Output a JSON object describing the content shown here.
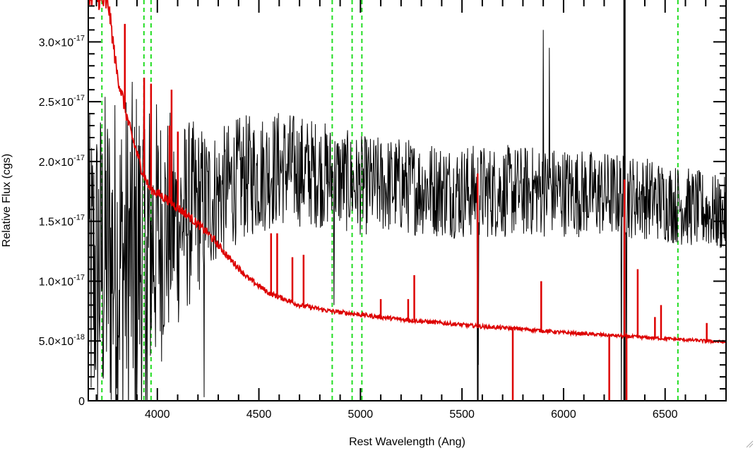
{
  "chart_data": {
    "type": "line",
    "title": "",
    "xlabel": "Rest Wavelength (Ang)",
    "ylabel": "Relative Flux (cgs)",
    "xlim": [
      3660,
      6800
    ],
    "ylim": [
      0,
      3.35e-17
    ],
    "x_ticks": [
      {
        "value": 4000,
        "label": "4000"
      },
      {
        "value": 4500,
        "label": "4500"
      },
      {
        "value": 5000,
        "label": "5000"
      },
      {
        "value": 5500,
        "label": "5500"
      },
      {
        "value": 6000,
        "label": "6000"
      },
      {
        "value": 6500,
        "label": "6500"
      }
    ],
    "y_ticks": [
      {
        "value": 0,
        "mantissa": "0",
        "exponent": ""
      },
      {
        "value": 5e-18,
        "mantissa": "5.0×10",
        "exponent": "-18"
      },
      {
        "value": 1e-17,
        "mantissa": "1.0×10",
        "exponent": "-17"
      },
      {
        "value": 1.5e-17,
        "mantissa": "1.5×10",
        "exponent": "-17"
      },
      {
        "value": 2e-17,
        "mantissa": "2.0×10",
        "exponent": "-17"
      },
      {
        "value": 2.5e-17,
        "mantissa": "2.5×10",
        "exponent": "-17"
      },
      {
        "value": 3e-17,
        "mantissa": "3.0×10",
        "exponent": "-17"
      }
    ],
    "grid": false,
    "line_markers_x": [
      3727,
      3934,
      3969,
      4861,
      4959,
      5007,
      6563
    ],
    "series": [
      {
        "color": "#000000",
        "style": "noisy spectrum",
        "mean": [
          [
            3660,
            1e-17
          ],
          [
            3750,
            1.2e-17
          ],
          [
            3850,
            1.15e-17
          ],
          [
            3950,
            1.3e-17
          ],
          [
            4050,
            1.45e-17
          ],
          [
            4200,
            1.6e-17
          ],
          [
            4400,
            1.85e-17
          ],
          [
            4600,
            1.95e-17
          ],
          [
            4800,
            1.9e-17
          ],
          [
            5000,
            1.8e-17
          ],
          [
            5200,
            1.8e-17
          ],
          [
            5500,
            1.75e-17
          ],
          [
            6000,
            1.75e-17
          ],
          [
            6400,
            1.7e-17
          ],
          [
            6800,
            1.55e-17
          ]
        ],
        "noise": [
          [
            3660,
            1.4e-17
          ],
          [
            3900,
            1.5e-17
          ],
          [
            4050,
            1e-17
          ],
          [
            4300,
            5.5e-18
          ],
          [
            5000,
            4.2e-18
          ],
          [
            6000,
            3.8e-18
          ],
          [
            6800,
            3.2e-18
          ]
        ],
        "spikes": [
          [
            4870,
            8e-18
          ],
          [
            5575,
            -1e-18
          ],
          [
            5580,
            3e-18
          ],
          [
            6285,
            -1e-18
          ],
          [
            6300,
            3.35e-17
          ],
          [
            6310,
            -1e-18
          ],
          [
            5930,
            2.95e-17
          ],
          [
            5900,
            3.1e-17
          ],
          [
            3890,
            -1e-18
          ],
          [
            3950,
            -1e-18
          ],
          [
            4230,
            3e-19
          ]
        ]
      },
      {
        "color": "#dd0000",
        "style": "model continuum with emission lines",
        "continuum": [
          [
            3660,
            3.4e-17
          ],
          [
            3760,
            3.3e-17
          ],
          [
            3800,
            2.75e-17
          ],
          [
            3860,
            2.3e-17
          ],
          [
            3920,
            1.95e-17
          ],
          [
            3960,
            1.78e-17
          ],
          [
            4050,
            1.68e-17
          ],
          [
            4150,
            1.55e-17
          ],
          [
            4250,
            1.4e-17
          ],
          [
            4350,
            1.2e-17
          ],
          [
            4450,
            1.02e-17
          ],
          [
            4550,
            9e-18
          ],
          [
            4700,
            8e-18
          ],
          [
            4850,
            7.5e-18
          ],
          [
            5000,
            7.2e-18
          ],
          [
            5200,
            6.8e-18
          ],
          [
            5400,
            6.5e-18
          ],
          [
            5600,
            6.2e-18
          ],
          [
            5800,
            6e-18
          ],
          [
            6000,
            5.7e-18
          ],
          [
            6200,
            5.5e-18
          ],
          [
            6400,
            5.3e-18
          ],
          [
            6600,
            5.1e-18
          ],
          [
            6800,
            4.9e-18
          ]
        ],
        "emission_lines": [
          [
            3840,
            3.15e-17
          ],
          [
            3935,
            2.7e-17
          ],
          [
            3969,
            2.65e-17
          ],
          [
            4060,
            2.3e-17
          ],
          [
            4070,
            2.6e-17
          ],
          [
            4101,
            2.25e-17
          ],
          [
            4560,
            1.4e-17
          ],
          [
            4590,
            1.4e-17
          ],
          [
            4665,
            1.2e-17
          ],
          [
            4720,
            1.22e-17
          ],
          [
            5100,
            8.5e-18
          ],
          [
            5235,
            8.5e-18
          ],
          [
            5265,
            1.05e-17
          ],
          [
            5577,
            1.9e-17
          ],
          [
            5890,
            1e-17
          ],
          [
            6300,
            1.85e-17
          ],
          [
            6365,
            1.1e-17
          ],
          [
            6450,
            7e-18
          ],
          [
            6480,
            8e-18
          ],
          [
            6705,
            6.5e-18
          ]
        ],
        "absorption_dips": [
          [
            5750,
            -1e-18
          ],
          [
            6225,
            -1e-18
          ],
          [
            6310,
            -1e-18
          ]
        ]
      }
    ]
  }
}
